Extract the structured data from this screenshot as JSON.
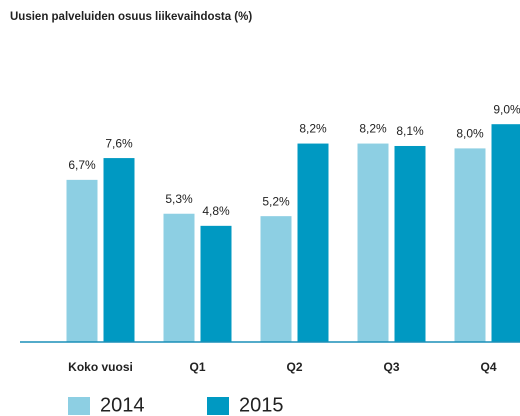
{
  "chart_data": {
    "type": "bar",
    "title": "Uusien palveluiden osuus liikevaihdosta (%)",
    "categories": [
      "Koko vuosi",
      "Q1",
      "Q2",
      "Q3",
      "Q4"
    ],
    "series": [
      {
        "name": "2014",
        "color": "#8dcfe3",
        "values": [
          6.7,
          5.3,
          5.2,
          8.2,
          8.0
        ],
        "value_labels": [
          "6,7%",
          "5,3%",
          "5,2%",
          "8,2%",
          "8,0%"
        ]
      },
      {
        "name": "2015",
        "color": "#0099c2",
        "values": [
          7.6,
          4.8,
          8.2,
          8.1,
          9.0
        ],
        "value_labels": [
          "7,6%",
          "4,8%",
          "8,2%",
          "8,1%",
          "9,0%"
        ]
      }
    ],
    "ylim": [
      0,
      13
    ]
  }
}
